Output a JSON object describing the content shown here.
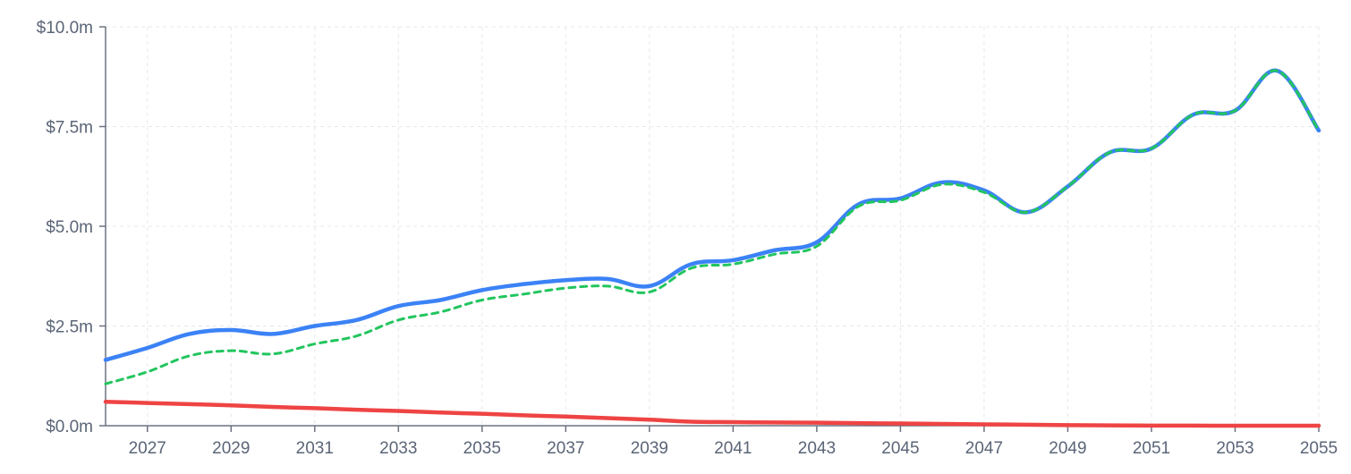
{
  "chart_data": {
    "type": "line",
    "x": [
      2026,
      2027,
      2028,
      2029,
      2030,
      2031,
      2032,
      2033,
      2034,
      2035,
      2036,
      2037,
      2038,
      2039,
      2040,
      2041,
      2042,
      2043,
      2044,
      2045,
      2046,
      2047,
      2048,
      2049,
      2050,
      2051,
      2052,
      2053,
      2054,
      2055
    ],
    "x_ticks": [
      "2027",
      "2029",
      "2031",
      "2033",
      "2035",
      "2037",
      "2039",
      "2041",
      "2043",
      "2045",
      "2047",
      "2049",
      "2051",
      "2053",
      "2055"
    ],
    "y_ticks": [
      "$0.0m",
      "$2.5m",
      "$5.0m",
      "$7.5m",
      "$10.0m"
    ],
    "ylim": [
      0,
      10
    ],
    "grid": true,
    "series": [
      {
        "color": "#3b82f6",
        "style": "solid",
        "values": [
          1.65,
          1.95,
          2.3,
          2.4,
          2.3,
          2.5,
          2.65,
          3.0,
          3.15,
          3.4,
          3.55,
          3.65,
          3.68,
          3.5,
          4.05,
          4.15,
          4.4,
          4.6,
          5.55,
          5.7,
          6.1,
          5.9,
          5.35,
          6.0,
          6.85,
          6.95,
          7.8,
          7.9,
          8.9,
          7.4
        ]
      },
      {
        "color": "#22c55e",
        "style": "dashed",
        "values": [
          1.05,
          1.35,
          1.75,
          1.88,
          1.8,
          2.05,
          2.25,
          2.65,
          2.85,
          3.15,
          3.3,
          3.45,
          3.5,
          3.35,
          3.95,
          4.05,
          4.3,
          4.5,
          5.5,
          5.65,
          6.05,
          5.85,
          5.35,
          6.0,
          6.85,
          6.95,
          7.8,
          7.9,
          8.9,
          7.4
        ]
      },
      {
        "color": "#ef4444",
        "style": "solid",
        "values": [
          0.6,
          0.57,
          0.54,
          0.51,
          0.47,
          0.44,
          0.4,
          0.37,
          0.33,
          0.3,
          0.26,
          0.23,
          0.19,
          0.15,
          0.1,
          0.09,
          0.08,
          0.075,
          0.065,
          0.055,
          0.045,
          0.035,
          0.025,
          0.015,
          0.008,
          0.004,
          0.002,
          0.001,
          0.001,
          0.0
        ]
      }
    ]
  }
}
